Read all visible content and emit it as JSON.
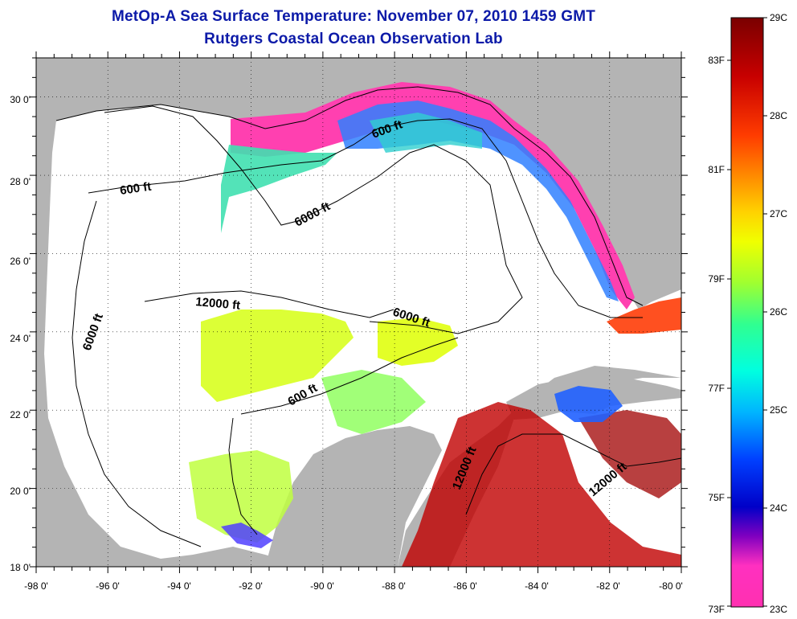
{
  "title": "MetOp-A Sea Surface Temperature:  November 07, 2010 1459 GMT",
  "subtitle": "Rutgers Coastal Ocean Observation Lab",
  "map": {
    "lon_ticks": [
      "-98 0'",
      "-96 0'",
      "-94 0'",
      "-92 0'",
      "-90 0'",
      "-88 0'",
      "-86 0'",
      "-84 0'",
      "-82 0'",
      "-80 0'"
    ],
    "lat_ticks": [
      "18 0'",
      "20 0'",
      "22 0'",
      "24 0'",
      "26 0'",
      "28 0'",
      "30 0'"
    ],
    "lon_range": [
      -98,
      -80
    ],
    "lat_range": [
      18,
      31
    ],
    "grid": "dotted",
    "land_color": "#b4b4b4",
    "nodata_color": "#ffffff",
    "contour_labels": [
      "600 ft",
      "600 ft",
      "600 ft",
      "6000 ft",
      "6000 ft",
      "6000 ft",
      "12000 ft",
      "12000 ft",
      "12000 ft"
    ]
  },
  "colorbar": {
    "celsius": [
      "29C",
      "28C",
      "27C",
      "26C",
      "25C",
      "24C",
      "23C"
    ],
    "fahrenheit": [
      "83F",
      "81F",
      "79F",
      "77F",
      "75F",
      "73F"
    ],
    "colors": [
      "#7a0000",
      "#c80000",
      "#ff3c00",
      "#ff8c00",
      "#ffd200",
      "#f0ff00",
      "#a0ff30",
      "#30ff90",
      "#00ffe0",
      "#00b4ff",
      "#0040ff",
      "#0000c8",
      "#8000c0",
      "#ff30c0",
      "#ff30b0"
    ]
  }
}
